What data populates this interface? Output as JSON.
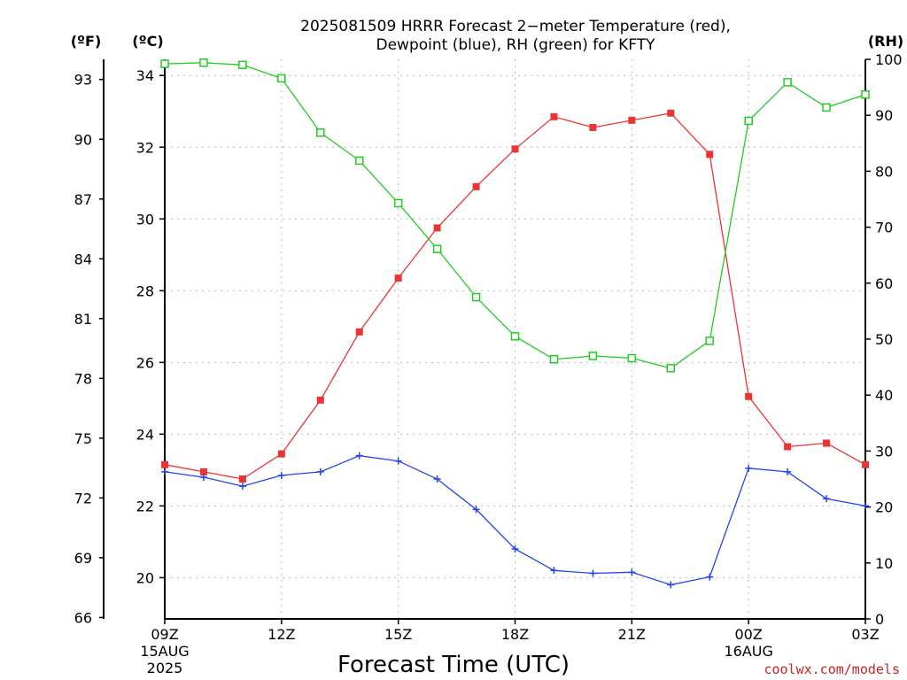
{
  "title_line1": "2025081509 HRRR Forecast 2−meter Temperature (red),",
  "title_line2": "Dewpoint (blue), RH (green) for KFTY",
  "credit": "coolwx.com/models",
  "colors": {
    "temperature": "#ee3333",
    "dewpoint": "#2244ee",
    "rh": "#22cc22",
    "grid": "#b8b8b8"
  },
  "chart_data": {
    "type": "line",
    "title": "2025081509 HRRR Forecast 2−meter Temperature (red), Dewpoint (blue), RH (green) for KFTY",
    "xlabel": "Forecast Time (UTC)",
    "x_unit_header_f": "(ºF)",
    "x_unit_header_c": "(ºC)",
    "rh_header": "(RH)",
    "x_hours": [
      9,
      10,
      11,
      12,
      13,
      14,
      15,
      16,
      17,
      18,
      19,
      20,
      21,
      22,
      23,
      24,
      25,
      26,
      27
    ],
    "x_ticks": [
      {
        "hour": 9,
        "label": "09Z",
        "sub1": "15AUG",
        "sub2": "2025"
      },
      {
        "hour": 12,
        "label": "12Z",
        "sub1": "",
        "sub2": ""
      },
      {
        "hour": 15,
        "label": "15Z",
        "sub1": "",
        "sub2": ""
      },
      {
        "hour": 18,
        "label": "18Z",
        "sub1": "",
        "sub2": ""
      },
      {
        "hour": 21,
        "label": "21Z",
        "sub1": "",
        "sub2": ""
      },
      {
        "hour": 24,
        "label": "00Z",
        "sub1": "16AUG",
        "sub2": ""
      },
      {
        "hour": 27,
        "label": "03Z",
        "sub1": "",
        "sub2": ""
      }
    ],
    "ylim_c": [
      18.85,
      34.45
    ],
    "yticks_c": [
      20,
      22,
      24,
      26,
      28,
      30,
      32,
      34
    ],
    "yticks_f": [
      66,
      69,
      72,
      75,
      78,
      81,
      84,
      87,
      90,
      93
    ],
    "ylim_rh": [
      0,
      100
    ],
    "yticks_rh": [
      0,
      10,
      20,
      30,
      40,
      50,
      60,
      70,
      80,
      90,
      100
    ],
    "grid": true,
    "series": [
      {
        "name": "Temperature",
        "axis": "celsius",
        "color": "#ee3333",
        "marker": "filled-square",
        "values": [
          23.15,
          22.95,
          22.75,
          23.45,
          24.95,
          26.85,
          28.35,
          29.75,
          30.9,
          31.95,
          32.85,
          32.55,
          32.75,
          32.95,
          31.8,
          25.05,
          23.65,
          23.75,
          23.15
        ]
      },
      {
        "name": "Dewpoint",
        "axis": "celsius",
        "color": "#2244ee",
        "marker": "plus",
        "values": [
          22.95,
          22.8,
          22.55,
          22.85,
          22.95,
          23.4,
          23.25,
          22.75,
          21.9,
          20.8,
          20.2,
          20.12,
          20.15,
          19.8,
          20.02,
          23.05,
          22.95,
          22.2,
          22.0
        ]
      },
      {
        "name": "RH",
        "axis": "rh",
        "color": "#22cc22",
        "marker": "open-square",
        "values": [
          99.2,
          99.4,
          99.0,
          96.6,
          86.9,
          81.9,
          74.3,
          66.1,
          57.5,
          50.5,
          46.4,
          47.0,
          46.6,
          44.8,
          49.7,
          89.0,
          95.9,
          91.4,
          93.7
        ]
      }
    ]
  }
}
